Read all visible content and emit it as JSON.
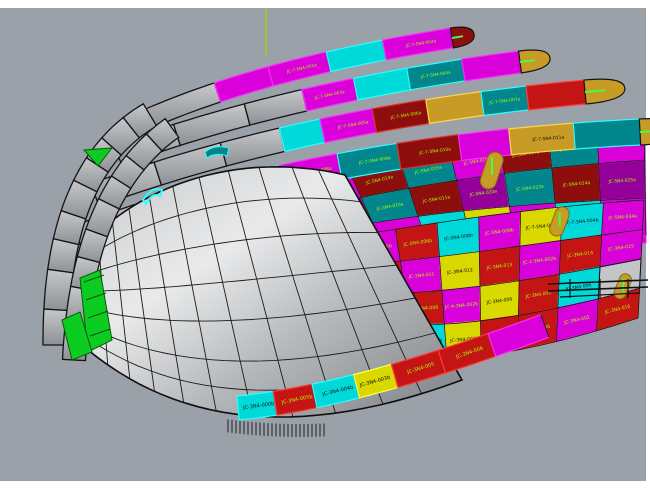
{
  "viewport": {
    "background": "#9aa1a9",
    "frame_color": "#ffffff",
    "axis_line_color": "#9ddb00"
  },
  "palette": {
    "magenta": "#d900d9",
    "magenta_bright": "#ff2bff",
    "cyan": "#00d9d9",
    "cyan_bright": "#2bffff",
    "teal": "#00868c",
    "dark_red": "#8e0d0d",
    "red": "#c51414",
    "red_bright": "#ff3b3b",
    "yellow": "#d9d900",
    "yellow_bright": "#ffff4d",
    "gold": "#c79b25",
    "purple": "#95009b",
    "gray": "#c3c5c8",
    "green": "#0ccc22",
    "green_bright": "#44ff44",
    "edge": "#141414",
    "label_dark": "#0d0d0d",
    "label_green": "#a8ff00",
    "hull_highlight": "#e9eaeb",
    "hull_shadow": "#7d8084"
  },
  "bands": [
    {
      "name": "band-1",
      "cap": "dark_red",
      "cells": [
        {
          "c": "gray",
          "w": 1.5,
          "l": ""
        },
        {
          "c": "magenta",
          "l": ""
        },
        {
          "c": "magenta",
          "l": "JC-7-5N4-001a"
        },
        {
          "c": "cyan",
          "l": ""
        },
        {
          "c": "magenta",
          "l": "JC-7-5N4-002a"
        }
      ]
    },
    {
      "name": "band-2",
      "cap": "gold",
      "cells": [
        {
          "c": "gray",
          "w": 1.4,
          "l": ""
        },
        {
          "c": "gray",
          "w": 1.4,
          "l": ""
        },
        {
          "c": "gray",
          "w": 1.3,
          "l": ""
        },
        {
          "c": "magenta",
          "l": "JC-7-5N4-003a"
        },
        {
          "c": "cyan",
          "l": ""
        },
        {
          "c": "teal",
          "l": "JC-7-5N4-004a"
        },
        {
          "c": "magenta",
          "l": ""
        }
      ]
    },
    {
      "name": "band-3",
      "cap": "gold",
      "cells": [
        {
          "c": "gray",
          "w": 1.5,
          "l": ""
        },
        {
          "c": "gray",
          "w": 1.4,
          "l": ""
        },
        {
          "c": "gray",
          "w": 1.3,
          "l": ""
        },
        {
          "c": "cyan",
          "l": ""
        },
        {
          "c": "magenta",
          "l": "JC-7-5N4-005a"
        },
        {
          "c": "dark_red",
          "l": "JC-7-5N4-006a"
        },
        {
          "c": "gold",
          "l": ""
        },
        {
          "c": "teal",
          "l": "JC-7-5N4-007a"
        },
        {
          "c": "red",
          "l": ""
        }
      ]
    },
    {
      "name": "band-4",
      "cap": "gold",
      "cells": [
        {
          "c": "gray",
          "w": 1.6,
          "l": ""
        },
        {
          "c": "gray",
          "w": 1.5,
          "l": ""
        },
        {
          "c": "cyan",
          "l": ""
        },
        {
          "c": "magenta",
          "l": "JC-7-5N4-008a"
        },
        {
          "c": "teal",
          "l": "JC-7-5N4-009a"
        },
        {
          "c": "dark_red",
          "l": "JC-7-5N4-010a"
        },
        {
          "c": "magenta",
          "l": ""
        },
        {
          "c": "gold",
          "l": "JC-7-5N4-011a"
        },
        {
          "c": "teal",
          "l": ""
        }
      ]
    }
  ],
  "deck_grid": {
    "rows": [
      [
        {
          "c": "teal",
          "l": "JC-5N4-012a"
        },
        {
          "c": "magenta",
          "l": "JC-5N4-013a"
        },
        {
          "c": "dark_red",
          "l": "JC-5N4-014a"
        },
        {
          "c": "teal",
          "l": "JC-5N4-015a"
        },
        {
          "c": "magenta",
          "l": "JC-5N4-016a"
        },
        {
          "c": "dark_red",
          "l": "JC-5N4-017a"
        },
        {
          "c": "teal",
          "l": "JC-5N4-018a"
        },
        {
          "c": "magenta",
          "l": "JC-5N4-019a"
        }
      ],
      [
        {
          "c": "dark_red",
          "l": "JC-5N4-008a"
        },
        {
          "c": "purple",
          "l": "JC-5N4-009a"
        },
        {
          "c": "teal",
          "l": "JC-5N4-010a"
        },
        {
          "c": "dark_red",
          "l": "JC-5N4-011a"
        },
        {
          "c": "purple",
          "l": "JC-5N4-020a"
        },
        {
          "c": "teal",
          "l": "JC-5N4-023a"
        },
        {
          "c": "dark_red",
          "l": "JC-5N4-024a"
        },
        {
          "c": "purple",
          "l": "JC-5N4-025a"
        }
      ],
      [
        {
          "c": "yellow",
          "l": "JC-5N4-007b"
        },
        {
          "c": "cyan",
          "l": "JC-5N4-003b"
        },
        {
          "c": "magenta",
          "l": "JC-5N4-021"
        },
        {
          "c": "cyan",
          "l": "JC-5N4-002a"
        },
        {
          "c": "yellow",
          "l": "JC-5N4-003a"
        },
        {
          "c": "magenta",
          "l": "JC-5N4-022b"
        },
        {
          "c": "cyan",
          "l": "JC-7-5N4-005"
        },
        {
          "c": "magenta",
          "l": "JC-7-5N4-004b"
        }
      ]
    ]
  },
  "side_grid": {
    "rows": [
      [
        {
          "c": "magenta",
          "l": "JC-5N4-005b"
        },
        {
          "c": "red",
          "l": "JC-5N4-006b"
        },
        {
          "c": "cyan",
          "l": "JC-5N4-008b"
        },
        {
          "c": "magenta",
          "l": "JC-5N4-009b"
        },
        {
          "c": "yellow",
          "l": "JC-7-5N4-003"
        },
        {
          "c": "cyan",
          "l": "JC-7-5N4-004b"
        },
        {
          "c": "magenta",
          "l": "JC-5N4-034a"
        }
      ],
      [
        {
          "c": "red",
          "l": "JC-3N4-010"
        },
        {
          "c": "magenta",
          "l": "JC-3N4-011"
        },
        {
          "c": "yellow",
          "l": "JC-3N4-012"
        },
        {
          "c": "red",
          "l": "JC-3N4-013"
        },
        {
          "c": "magenta",
          "l": "JC-1-3N4-002b"
        },
        {
          "c": "red",
          "l": "JC-3N4-014"
        },
        {
          "c": "magenta",
          "l": "JC-3N4-015"
        }
      ],
      [
        {
          "c": "cyan",
          "l": "JC-3N4-007"
        },
        {
          "c": "red",
          "l": "JC-3N4-008"
        },
        {
          "c": "magenta",
          "l": "JC-4-3N4-002b"
        },
        {
          "c": "yellow",
          "l": "JC-3N4-009"
        },
        {
          "c": "red",
          "l": "JC-3N4-001"
        },
        {
          "c": "cyan",
          "l": "JC-3N4-006"
        },
        {
          "c": "gray",
          "l": ""
        }
      ],
      [
        {
          "c": "red",
          "l": "JC-3N4-001"
        },
        {
          "c": "cyan",
          "l": "JC-3N4-003"
        },
        {
          "c": "yellow",
          "l": "JC-3N4-004"
        },
        {
          "c": "red",
          "l": "JC-3N4-005"
        },
        {
          "c": "red",
          "l": "JC-3N4-006"
        },
        {
          "c": "magenta",
          "l": "JC-3N4-002"
        },
        {
          "c": "red",
          "l": "JC-3N4-016"
        }
      ]
    ]
  },
  "bottom_row": {
    "cells": [
      {
        "c": "cyan",
        "l": "JC-3N4-000b"
      },
      {
        "c": "red",
        "l": "JC-3N4-005b"
      },
      {
        "c": "cyan",
        "l": "JC-3N4-004b"
      },
      {
        "c": "yellow",
        "l": "JC-3N4-003b"
      },
      {
        "c": "red",
        "l": "JC-3N4-005"
      },
      {
        "c": "red",
        "l": "JC-3N4-006"
      },
      {
        "c": "magenta",
        "l": ""
      }
    ]
  }
}
